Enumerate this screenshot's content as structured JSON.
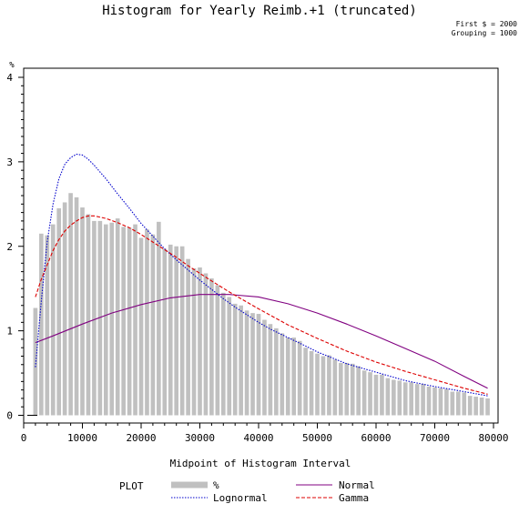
{
  "chart_data": {
    "type": "bar",
    "title": "Histogram for Yearly Reimb.+1 (truncated)",
    "notes": [
      "First $ = 2000",
      "Grouping = 1000"
    ],
    "xlabel": "Midpoint of Histogram Interval",
    "ylabel": "%",
    "xlim": [
      0,
      80000
    ],
    "ylim": [
      0,
      4
    ],
    "x_ticks": [
      0,
      10000,
      20000,
      30000,
      40000,
      50000,
      60000,
      70000,
      80000
    ],
    "y_ticks": [
      0,
      1,
      2,
      3,
      4
    ],
    "bin_width": 1000,
    "bars": {
      "name": "%",
      "color": "#c0c0c0",
      "x": [
        2000,
        3000,
        4000,
        5000,
        6000,
        7000,
        8000,
        9000,
        10000,
        11000,
        12000,
        13000,
        14000,
        15000,
        16000,
        17000,
        18000,
        19000,
        20000,
        21000,
        22000,
        23000,
        24000,
        25000,
        26000,
        27000,
        28000,
        29000,
        30000,
        31000,
        32000,
        33000,
        34000,
        35000,
        36000,
        37000,
        38000,
        39000,
        40000,
        41000,
        42000,
        43000,
        44000,
        45000,
        46000,
        47000,
        48000,
        49000,
        50000,
        51000,
        52000,
        53000,
        54000,
        55000,
        56000,
        57000,
        58000,
        59000,
        60000,
        61000,
        62000,
        63000,
        64000,
        65000,
        66000,
        67000,
        68000,
        69000,
        70000,
        71000,
        72000,
        73000,
        74000,
        75000,
        76000,
        77000,
        78000,
        79000
      ],
      "values": [
        1.27,
        2.15,
        2.13,
        2.26,
        2.45,
        2.52,
        2.63,
        2.58,
        2.46,
        2.38,
        2.3,
        2.3,
        2.26,
        2.28,
        2.33,
        2.23,
        2.22,
        2.26,
        2.1,
        2.2,
        2.14,
        2.29,
        1.97,
        2.02,
        2.0,
        2.0,
        1.85,
        1.74,
        1.75,
        1.68,
        1.62,
        1.54,
        1.45,
        1.4,
        1.32,
        1.3,
        1.24,
        1.21,
        1.2,
        1.13,
        1.08,
        1.03,
        0.97,
        0.92,
        0.92,
        0.88,
        0.8,
        0.76,
        0.73,
        0.7,
        0.71,
        0.66,
        0.62,
        0.62,
        0.61,
        0.58,
        0.53,
        0.51,
        0.48,
        0.48,
        0.44,
        0.42,
        0.41,
        0.39,
        0.39,
        0.37,
        0.37,
        0.34,
        0.33,
        0.32,
        0.31,
        0.28,
        0.28,
        0.27,
        0.23,
        0.22,
        0.21,
        0.2
      ]
    },
    "series": [
      {
        "name": "Normal",
        "type": "line",
        "color": "#800080",
        "dash": "solid",
        "x": [
          2000,
          5000,
          10000,
          15000,
          20000,
          25000,
          30000,
          35000,
          40000,
          45000,
          50000,
          55000,
          60000,
          65000,
          70000,
          75000,
          79000
        ],
        "y": [
          0.86,
          0.94,
          1.08,
          1.21,
          1.31,
          1.39,
          1.43,
          1.43,
          1.4,
          1.32,
          1.21,
          1.08,
          0.94,
          0.79,
          0.64,
          0.46,
          0.32
        ]
      },
      {
        "name": "Lognormal",
        "type": "line",
        "color": "#0000cc",
        "dash": "dotted",
        "x": [
          2000,
          3000,
          4000,
          5000,
          6000,
          7000,
          8000,
          9000,
          10000,
          11000,
          12000,
          14000,
          16000,
          18000,
          20000,
          22000,
          24000,
          26000,
          28000,
          30000,
          32000,
          34000,
          36000,
          38000,
          40000,
          42000,
          45000,
          48000,
          50000,
          55000,
          60000,
          65000,
          70000,
          75000,
          79000
        ],
        "y": [
          0.57,
          1.35,
          2.05,
          2.5,
          2.8,
          2.97,
          3.05,
          3.09,
          3.08,
          3.03,
          2.96,
          2.8,
          2.62,
          2.45,
          2.27,
          2.12,
          1.97,
          1.84,
          1.72,
          1.6,
          1.49,
          1.38,
          1.28,
          1.19,
          1.1,
          1.02,
          0.92,
          0.82,
          0.75,
          0.61,
          0.51,
          0.41,
          0.34,
          0.28,
          0.23
        ]
      },
      {
        "name": "Gamma",
        "type": "line",
        "color": "#dd0000",
        "dash": "dashed",
        "x": [
          2000,
          3000,
          4000,
          5000,
          6000,
          7000,
          8000,
          9000,
          10000,
          11000,
          12000,
          14000,
          16000,
          18000,
          20000,
          22000,
          24000,
          26000,
          28000,
          30000,
          32000,
          35000,
          38000,
          40000,
          45000,
          50000,
          55000,
          60000,
          65000,
          70000,
          75000,
          79000
        ],
        "y": [
          1.4,
          1.61,
          1.78,
          1.95,
          2.08,
          2.18,
          2.25,
          2.3,
          2.34,
          2.36,
          2.36,
          2.33,
          2.28,
          2.22,
          2.14,
          2.05,
          1.96,
          1.87,
          1.77,
          1.68,
          1.59,
          1.46,
          1.34,
          1.26,
          1.07,
          0.91,
          0.76,
          0.63,
          0.52,
          0.42,
          0.32,
          0.25
        ]
      }
    ],
    "legend": {
      "placement": "bottom",
      "title": "PLOT",
      "items": [
        {
          "label": "%",
          "kind": "bar",
          "color": "#c0c0c0"
        },
        {
          "label": "Normal",
          "kind": "line",
          "color": "#800080",
          "dash": "solid"
        },
        {
          "label": "Lognormal",
          "kind": "line",
          "color": "#0000cc",
          "dash": "dotted"
        },
        {
          "label": "Gamma",
          "kind": "line",
          "color": "#dd0000",
          "dash": "dashed"
        }
      ]
    },
    "grid": false
  }
}
